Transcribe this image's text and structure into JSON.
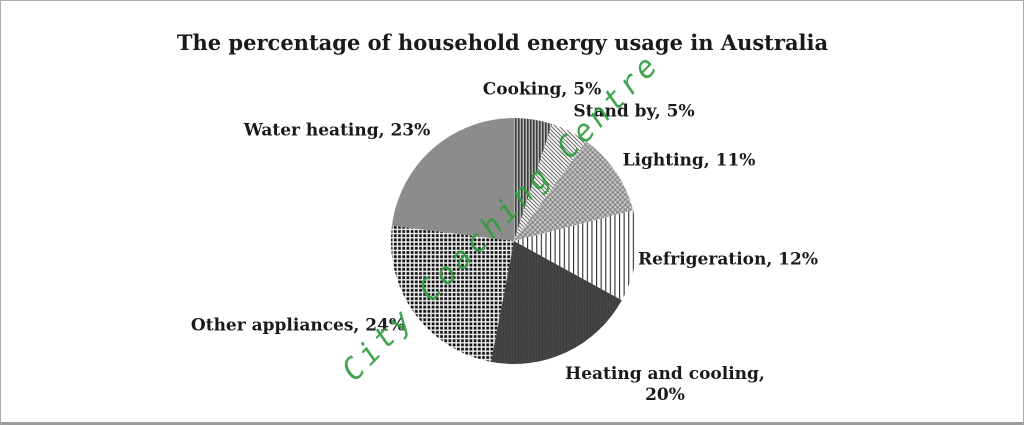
{
  "frame": {
    "background": "#ffffff",
    "border_color": "#ababab"
  },
  "chart_data": {
    "type": "pie",
    "title": "The percentage of household energy usage in Australia",
    "start_angle_deg": 0,
    "direction": "clockwise",
    "units": "%",
    "total": 100,
    "legend_position": "outside-data-labels",
    "segments": [
      {
        "label": "Cooking",
        "value": 5,
        "display": "Cooking, 5%",
        "pattern": "vertical-stripes"
      },
      {
        "label": "Stand by",
        "value": 5,
        "display": "Stand by, 5%",
        "pattern": "diagonal-hatch"
      },
      {
        "label": "Lighting",
        "value": 11,
        "display": "Lighting, 11%",
        "pattern": "dot-grid"
      },
      {
        "label": "Refrigeration",
        "value": 12,
        "display": "Refrigeration, 12%",
        "pattern": "vertical-lines"
      },
      {
        "label": "Heating and cooling",
        "value": 20,
        "display": "Heating and cooling,\n20%",
        "pattern": "dark-weave"
      },
      {
        "label": "Other appliances",
        "value": 24,
        "display": "Other appliances, 24%",
        "pattern": "checkerboard"
      },
      {
        "label": "Water heating",
        "value": 23,
        "display": "Water heating, 23%",
        "pattern": "solid-gray",
        "color": "#8c8c8c"
      }
    ],
    "label_color": "#1a1a1a"
  },
  "watermark": {
    "text": "City Coaching Centre",
    "color": "#2f9e41"
  }
}
